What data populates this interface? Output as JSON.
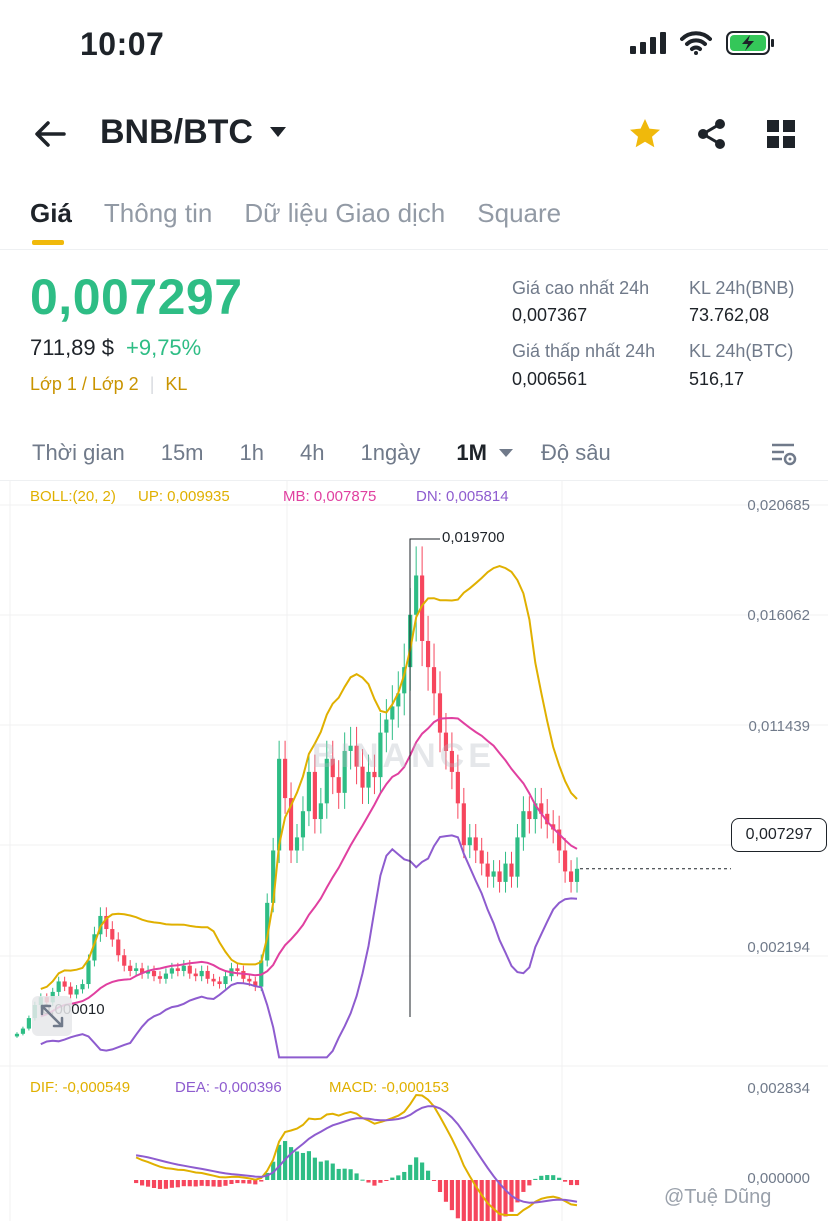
{
  "status_bar": {
    "time": "10:07"
  },
  "header": {
    "pair": "BNB/BTC",
    "icons": [
      "back-arrow-icon",
      "caret-down-icon",
      "star-icon",
      "share-icon",
      "grid-icon"
    ],
    "star_color": "#f0b90b"
  },
  "tabs": [
    {
      "label": "Giá",
      "active": true
    },
    {
      "label": "Thông tin",
      "active": false
    },
    {
      "label": "Dữ liệu Giao dịch",
      "active": false
    },
    {
      "label": "Square",
      "active": false
    }
  ],
  "price": {
    "last": "0,007297",
    "usd": "711,89 $",
    "change": "+9,75%",
    "tags": "Lớp 1 / Lớp 2",
    "tag_extra": "KL",
    "color_up": "#2ebd85",
    "color_down": "#f6465d"
  },
  "stats": {
    "high_label": "Giá cao nhất 24h",
    "high_value": "0,007367",
    "low_label": "Giá thấp nhất 24h",
    "low_value": "0,006561",
    "vol_base_label": "KL 24h(BNB)",
    "vol_base_value": "73.762,08",
    "vol_quote_label": "KL 24h(BTC)",
    "vol_quote_value": "516,17"
  },
  "intervals": {
    "items": [
      "Thời gian",
      "15m",
      "1h",
      "4h",
      "1ngày"
    ],
    "selected": "1M",
    "depth": "Độ sâu"
  },
  "boll": {
    "label": "BOLL:(20, 2)",
    "up": "UP: 0,009935",
    "mb": "MB: 0,007875",
    "dn": "DN: 0,005814",
    "color_up": "#e0b000",
    "color_mb": "#e040a0",
    "color_dn": "#8e5ccf"
  },
  "macd": {
    "dif": "DIF: -0,000549",
    "dea": "DEA: -0,000396",
    "macd": "MACD: -0,000153",
    "color_dif": "#e0b000",
    "color_dea": "#8e5ccf",
    "color_macd": "#e0b000"
  },
  "axis": {
    "price_labels": [
      "0,020685",
      "0,016062",
      "0,011439",
      "0,002194"
    ],
    "macd_labels": [
      "0,002834",
      "0,000000"
    ],
    "current": "0,007297",
    "max_marker": "0,019700",
    "min_marker": "0,000010"
  },
  "watermark": "BINANCE",
  "credit": "@Tuệ Dũng",
  "chart_data": {
    "type": "candlestick",
    "interval": "1M",
    "ylim": [
      0.0,
      0.021
    ],
    "closes": [
      0.001,
      0.0012,
      0.0016,
      0.0021,
      0.0024,
      0.0022,
      0.0026,
      0.003,
      0.0028,
      0.0025,
      0.0027,
      0.0029,
      0.0038,
      0.0048,
      0.0055,
      0.005,
      0.0046,
      0.004,
      0.0036,
      0.0034,
      0.0035,
      0.0033,
      0.0034,
      0.0032,
      0.0031,
      0.0033,
      0.0035,
      0.0034,
      0.0036,
      0.0033,
      0.0032,
      0.0034,
      0.0031,
      0.003,
      0.0029,
      0.0032,
      0.0035,
      0.0034,
      0.0031,
      0.003,
      0.0028,
      0.0038,
      0.006,
      0.008,
      0.0115,
      0.01,
      0.008,
      0.0085,
      0.0095,
      0.011,
      0.0092,
      0.0098,
      0.0115,
      0.0108,
      0.0102,
      0.0118,
      0.012,
      0.0112,
      0.0104,
      0.011,
      0.0108,
      0.0125,
      0.013,
      0.0135,
      0.014,
      0.015,
      0.017,
      0.0185,
      0.016,
      0.015,
      0.014,
      0.0125,
      0.0118,
      0.011,
      0.0098,
      0.0082,
      0.0085,
      0.008,
      0.0075,
      0.007,
      0.0072,
      0.0068,
      0.0075,
      0.007,
      0.0085,
      0.0095,
      0.0092,
      0.0098,
      0.0094,
      0.009,
      0.0088,
      0.008,
      0.0072,
      0.0068,
      0.0073
    ]
  }
}
